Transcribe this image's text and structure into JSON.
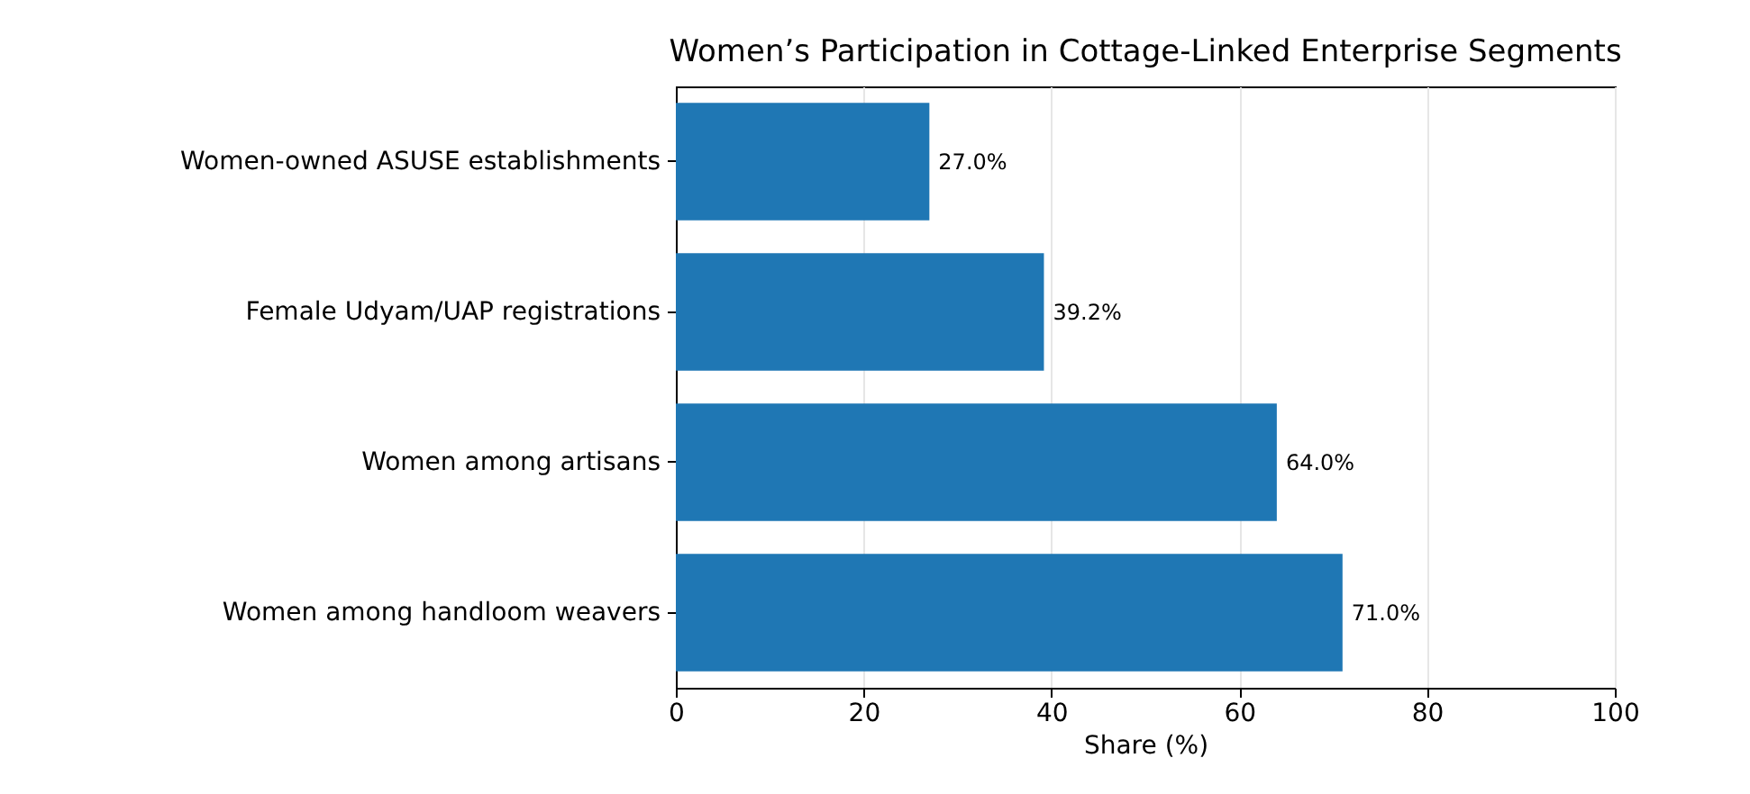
{
  "chart_data": {
    "type": "bar",
    "orientation": "horizontal",
    "title": "Women’s Participation in Cottage-Linked Enterprise Segments",
    "xlabel": "Share (%)",
    "categories": [
      "Women-owned ASUSE establishments",
      "Female Udyam/UAP registrations",
      "Women among artisans",
      "Women among handloom weavers"
    ],
    "values": [
      27.0,
      39.2,
      64.0,
      71.0
    ],
    "value_labels": [
      "27.0%",
      "39.2%",
      "64.0%",
      "71.0%"
    ],
    "color": "#1f77b4",
    "xlim": [
      0,
      100
    ],
    "xticks": [
      0,
      20,
      40,
      60,
      80,
      100
    ],
    "grid": "x"
  }
}
